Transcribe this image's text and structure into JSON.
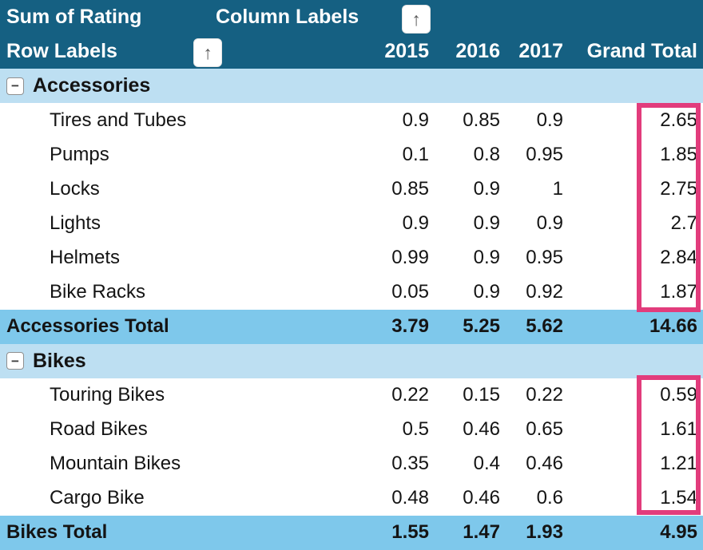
{
  "pivot": {
    "value_field_label": "Sum of Rating",
    "column_labels_label": "Column Labels",
    "row_labels_label": "Row Labels",
    "columns": [
      "2015",
      "2016",
      "2017"
    ],
    "grand_total_label": "Grand Total",
    "icons": {
      "filter_button_glyph": "↑",
      "collapse_glyph": "−"
    },
    "colors": {
      "header_bg": "#156082",
      "group_row_bg": "#BDDFF2",
      "total_row_bg": "#7EC8EB",
      "highlight_border": "#E23C7C",
      "header_text": "#ffffff",
      "body_text": "#141414"
    },
    "groups": [
      {
        "name": "Accessories",
        "items": [
          {
            "label": "Tires and Tubes",
            "values": [
              "0.9",
              "0.85",
              "0.9",
              "2.65"
            ]
          },
          {
            "label": "Pumps",
            "values": [
              "0.1",
              "0.8",
              "0.95",
              "1.85"
            ]
          },
          {
            "label": "Locks",
            "values": [
              "0.85",
              "0.9",
              "1",
              "2.75"
            ]
          },
          {
            "label": "Lights",
            "values": [
              "0.9",
              "0.9",
              "0.9",
              "2.7"
            ]
          },
          {
            "label": "Helmets",
            "values": [
              "0.99",
              "0.9",
              "0.95",
              "2.84"
            ]
          },
          {
            "label": "Bike Racks",
            "values": [
              "0.05",
              "0.9",
              "0.92",
              "1.87"
            ]
          }
        ],
        "total": {
          "label": "Accessories Total",
          "values": [
            "3.79",
            "5.25",
            "5.62",
            "14.66"
          ]
        }
      },
      {
        "name": "Bikes",
        "items": [
          {
            "label": "Touring Bikes",
            "values": [
              "0.22",
              "0.15",
              "0.22",
              "0.59"
            ]
          },
          {
            "label": "Road Bikes",
            "values": [
              "0.5",
              "0.46",
              "0.65",
              "1.61"
            ]
          },
          {
            "label": "Mountain Bikes",
            "values": [
              "0.35",
              "0.4",
              "0.46",
              "1.21"
            ]
          },
          {
            "label": "Cargo Bike",
            "values": [
              "0.48",
              "0.46",
              "0.6",
              "1.54"
            ]
          }
        ],
        "total": {
          "label": "Bikes Total",
          "values": [
            "1.55",
            "1.47",
            "1.93",
            "4.95"
          ]
        }
      }
    ]
  }
}
